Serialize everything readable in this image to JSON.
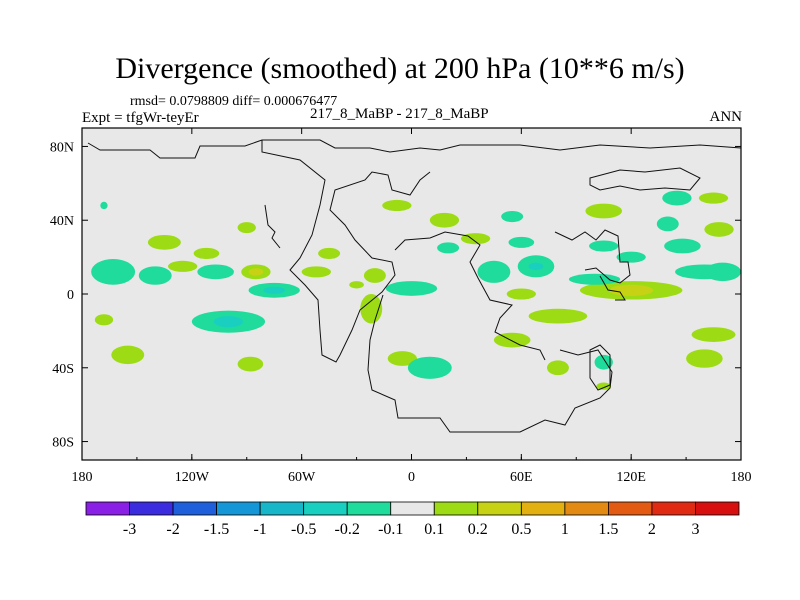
{
  "header": {
    "title": "Divergence (smoothed) at 200 hPa (10**6 m/s)",
    "stats": "rmsd= 0.0798809 diff= 0.000676477",
    "experiment": "Expt = tfgWr-teyEr",
    "case": "217_8_MaBP - 217_8_MaBP",
    "season": "ANN"
  },
  "chart_data": {
    "type": "heatmap",
    "title": "Divergence (smoothed) at 200 hPa (10**6 m/s)",
    "xlim": [
      -180,
      180
    ],
    "ylim": [
      -90,
      90
    ],
    "x_ticks": [
      {
        "value": -180,
        "label": "180"
      },
      {
        "value": -120,
        "label": "120W"
      },
      {
        "value": -60,
        "label": "60W"
      },
      {
        "value": 0,
        "label": "0"
      },
      {
        "value": 60,
        "label": "60E"
      },
      {
        "value": 120,
        "label": "120E"
      },
      {
        "value": 180,
        "label": "180"
      }
    ],
    "y_ticks": [
      {
        "value": 80,
        "label": "80N"
      },
      {
        "value": 40,
        "label": "40N"
      },
      {
        "value": 0,
        "label": "0"
      },
      {
        "value": -40,
        "label": "40S"
      },
      {
        "value": -80,
        "label": "80S"
      }
    ],
    "background_color": "#e8e8e8",
    "colorbar": {
      "labels": [
        "-3",
        "-2",
        "-1.5",
        "-1",
        "-0.5",
        "-0.2",
        "-0.1",
        "0.1",
        "0.2",
        "0.5",
        "1",
        "1.5",
        "2",
        "3"
      ],
      "colors": [
        "#8a1fe6",
        "#3b2ce0",
        "#1f5fdc",
        "#1596d6",
        "#17b6c9",
        "#19cfc0",
        "#1fdc9c",
        "#e8e8e8",
        "#9ddc14",
        "#c8d214",
        "#e3b012",
        "#e38a12",
        "#e35a12",
        "#e02a12",
        "#d70f0f"
      ]
    },
    "anomalies": [
      {
        "lon": -163,
        "lat": 12,
        "rx": 12,
        "ry": 7,
        "value": -0.15
      },
      {
        "lon": -140,
        "lat": 10,
        "rx": 9,
        "ry": 5,
        "value": -0.15
      },
      {
        "lon": -125,
        "lat": 15,
        "rx": 8,
        "ry": 3,
        "value": 0.15
      },
      {
        "lon": -107,
        "lat": 12,
        "rx": 10,
        "ry": 4,
        "value": -0.15
      },
      {
        "lon": -85,
        "lat": 12,
        "rx": 8,
        "ry": 4,
        "value": 0.15
      },
      {
        "lon": -85,
        "lat": 12,
        "rx": 4,
        "ry": 2,
        "value": 0.3
      },
      {
        "lon": -135,
        "lat": 28,
        "rx": 9,
        "ry": 4,
        "value": 0.15
      },
      {
        "lon": -90,
        "lat": 36,
        "rx": 5,
        "ry": 3,
        "value": 0.15
      },
      {
        "lon": -112,
        "lat": 22,
        "rx": 7,
        "ry": 3,
        "value": 0.15
      },
      {
        "lon": -52,
        "lat": 12,
        "rx": 8,
        "ry": 3,
        "value": 0.15
      },
      {
        "lon": -45,
        "lat": 22,
        "rx": 6,
        "ry": 3,
        "value": 0.15
      },
      {
        "lon": -75,
        "lat": 2,
        "rx": 14,
        "ry": 4,
        "value": -0.15
      },
      {
        "lon": -75,
        "lat": 2,
        "rx": 6,
        "ry": 2,
        "value": -0.3
      },
      {
        "lon": -100,
        "lat": -15,
        "rx": 20,
        "ry": 6,
        "value": -0.15
      },
      {
        "lon": -100,
        "lat": -15,
        "rx": 8,
        "ry": 3,
        "value": -0.3
      },
      {
        "lon": -168,
        "lat": -14,
        "rx": 5,
        "ry": 3,
        "value": 0.15
      },
      {
        "lon": -155,
        "lat": -33,
        "rx": 9,
        "ry": 5,
        "value": 0.15
      },
      {
        "lon": -88,
        "lat": -38,
        "rx": 7,
        "ry": 4,
        "value": 0.15
      },
      {
        "lon": -5,
        "lat": -35,
        "rx": 8,
        "ry": 4,
        "value": 0.15
      },
      {
        "lon": -20,
        "lat": 10,
        "rx": 6,
        "ry": 4,
        "value": 0.15
      },
      {
        "lon": -22,
        "lat": -8,
        "rx": 6,
        "ry": 8,
        "value": 0.15
      },
      {
        "lon": -30,
        "lat": 5,
        "rx": 4,
        "ry": 2,
        "value": 0.15
      },
      {
        "lon": 0,
        "lat": 3,
        "rx": 14,
        "ry": 4,
        "value": -0.15
      },
      {
        "lon": -8,
        "lat": 48,
        "rx": 8,
        "ry": 3,
        "value": 0.15
      },
      {
        "lon": 18,
        "lat": 40,
        "rx": 8,
        "ry": 4,
        "value": 0.15
      },
      {
        "lon": 35,
        "lat": 30,
        "rx": 8,
        "ry": 3,
        "value": 0.15
      },
      {
        "lon": 20,
        "lat": 25,
        "rx": 6,
        "ry": 3,
        "value": -0.15
      },
      {
        "lon": 55,
        "lat": 42,
        "rx": 6,
        "ry": 3,
        "value": -0.15
      },
      {
        "lon": 60,
        "lat": 28,
        "rx": 7,
        "ry": 3,
        "value": -0.15
      },
      {
        "lon": 45,
        "lat": 12,
        "rx": 9,
        "ry": 6,
        "value": -0.15
      },
      {
        "lon": 68,
        "lat": 15,
        "rx": 10,
        "ry": 6,
        "value": -0.15
      },
      {
        "lon": 68,
        "lat": 15,
        "rx": 4,
        "ry": 2,
        "value": -0.3
      },
      {
        "lon": 105,
        "lat": 26,
        "rx": 8,
        "ry": 3,
        "value": -0.15
      },
      {
        "lon": 120,
        "lat": 20,
        "rx": 8,
        "ry": 3,
        "value": -0.15
      },
      {
        "lon": 148,
        "lat": 26,
        "rx": 10,
        "ry": 4,
        "value": -0.15
      },
      {
        "lon": 168,
        "lat": 35,
        "rx": 8,
        "ry": 4,
        "value": 0.15
      },
      {
        "lon": 140,
        "lat": 38,
        "rx": 6,
        "ry": 4,
        "value": -0.15
      },
      {
        "lon": 145,
        "lat": 52,
        "rx": 8,
        "ry": 4,
        "value": -0.15
      },
      {
        "lon": 165,
        "lat": 52,
        "rx": 8,
        "ry": 3,
        "value": 0.15
      },
      {
        "lon": 105,
        "lat": 45,
        "rx": 10,
        "ry": 4,
        "value": 0.15
      },
      {
        "lon": 120,
        "lat": 2,
        "rx": 28,
        "ry": 5,
        "value": 0.15
      },
      {
        "lon": 120,
        "lat": 2,
        "rx": 12,
        "ry": 3,
        "value": 0.3
      },
      {
        "lon": 100,
        "lat": 8,
        "rx": 14,
        "ry": 3,
        "value": -0.15
      },
      {
        "lon": 160,
        "lat": 12,
        "rx": 16,
        "ry": 4,
        "value": -0.15
      },
      {
        "lon": 170,
        "lat": 12,
        "rx": 10,
        "ry": 5,
        "value": -0.15
      },
      {
        "lon": 60,
        "lat": 0,
        "rx": 8,
        "ry": 3,
        "value": 0.15
      },
      {
        "lon": 80,
        "lat": -12,
        "rx": 16,
        "ry": 4,
        "value": 0.15
      },
      {
        "lon": 55,
        "lat": -25,
        "rx": 10,
        "ry": 4,
        "value": 0.15
      },
      {
        "lon": 10,
        "lat": -40,
        "rx": 12,
        "ry": 6,
        "value": -0.15
      },
      {
        "lon": 80,
        "lat": -40,
        "rx": 6,
        "ry": 4,
        "value": 0.15
      },
      {
        "lon": 105,
        "lat": -37,
        "rx": 5,
        "ry": 4,
        "value": -0.15
      },
      {
        "lon": 105,
        "lat": -50,
        "rx": 4,
        "ry": 2,
        "value": 0.15
      },
      {
        "lon": 165,
        "lat": -22,
        "rx": 12,
        "ry": 4,
        "value": 0.15
      },
      {
        "lon": 160,
        "lat": -35,
        "rx": 10,
        "ry": 5,
        "value": 0.15
      },
      {
        "lon": -168,
        "lat": 48,
        "rx": 2,
        "ry": 2,
        "value": -0.15
      }
    ]
  }
}
